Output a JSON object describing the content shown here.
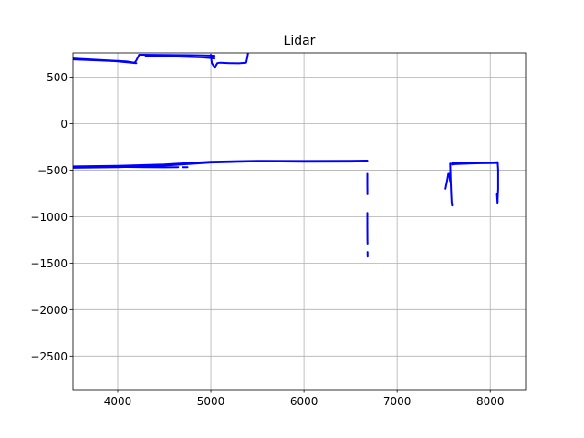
{
  "chart_data": {
    "type": "scatter",
    "title": "Lidar",
    "xlabel": "",
    "ylabel": "",
    "xlim": [
      3520,
      8380
    ],
    "ylim": [
      -2860,
      760
    ],
    "grid": true,
    "xticks": [
      4000,
      5000,
      6000,
      7000,
      8000
    ],
    "xtick_labels": [
      "4000",
      "5000",
      "6000",
      "7000",
      "8000"
    ],
    "yticks": [
      500,
      0,
      -500,
      -1000,
      -1500,
      -2000,
      -2500
    ],
    "ytick_labels": [
      "500",
      "0",
      "−500",
      "−1000",
      "−1500",
      "−2000",
      "−2500"
    ],
    "series_color": "#0000ff",
    "grid_color": "#b0b0b0",
    "series": [
      {
        "x": [
          3520,
          3700,
          3900,
          4100,
          4180,
          4200,
          4230
        ],
        "y": [
          700,
          690,
          680,
          668,
          655,
          680,
          740
        ]
      },
      {
        "x": [
          3520,
          3800,
          4000,
          4200
        ],
        "y": [
          690,
          680,
          670,
          650
        ]
      },
      {
        "x": [
          4240,
          4500,
          4800,
          5000,
          5040
        ],
        "y": [
          740,
          738,
          735,
          732,
          730
        ]
      },
      {
        "x": [
          4300,
          4600,
          4900,
          5000,
          5040
        ],
        "y": [
          730,
          722,
          712,
          705,
          700
        ]
      },
      {
        "x": [
          5000,
          5010,
          5030
        ],
        "y": [
          740,
          650,
          620
        ]
      },
      {
        "x": [
          5040,
          5070,
          5100,
          5200,
          5300,
          5380,
          5390,
          5400
        ],
        "y": [
          600,
          650,
          655,
          650,
          648,
          655,
          700,
          760
        ]
      },
      {
        "x": [
          3520,
          4000,
          4500,
          5000,
          5500,
          6000,
          6500,
          6680
        ],
        "y": [
          -460,
          -455,
          -440,
          -410,
          -400,
          -402,
          -400,
          -398
        ]
      },
      {
        "x": [
          3520,
          4000,
          4500,
          5000,
          5500,
          6000,
          6500,
          6680
        ],
        "y": [
          -475,
          -468,
          -452,
          -418,
          -405,
          -410,
          -408,
          -405
        ]
      },
      {
        "x": [
          4000,
          4300,
          4500,
          4650
        ],
        "y": [
          -465,
          -468,
          -470,
          -468
        ]
      },
      {
        "x": [
          4700,
          4750
        ],
        "y": [
          -468,
          -468
        ]
      },
      {
        "x": [
          6680,
          6680,
          6681
        ],
        "y": [
          -540,
          -650,
          -760
        ]
      },
      {
        "x": [
          6680,
          6680,
          6681,
          6682
        ],
        "y": [
          -960,
          -1100,
          -1250,
          -1290
        ]
      },
      {
        "x": [
          6682,
          6683
        ],
        "y": [
          -1380,
          -1430
        ]
      },
      {
        "x": [
          7520,
          7540,
          7550,
          7560,
          7570
        ],
        "y": [
          -700,
          -600,
          -540,
          -540,
          -620
        ]
      },
      {
        "x": [
          7570,
          7575,
          7580,
          7585,
          7590
        ],
        "y": [
          -430,
          -600,
          -750,
          -850,
          -880
        ]
      },
      {
        "x": [
          7585,
          7600,
          7620,
          7700,
          7800,
          7900,
          8000,
          8080
        ],
        "y": [
          -430,
          -420,
          -425,
          -422,
          -420,
          -418,
          -418,
          -415
        ]
      },
      {
        "x": [
          7590,
          7620,
          7700,
          7800,
          7900,
          8000,
          8080
        ],
        "y": [
          -440,
          -436,
          -432,
          -428,
          -426,
          -425,
          -423
        ]
      },
      {
        "x": [
          8080,
          8085,
          8085,
          8080,
          8078
        ],
        "y": [
          -415,
          -500,
          -700,
          -800,
          -860
        ]
      },
      {
        "x": [
          8072,
          8078
        ],
        "y": [
          -760,
          -840
        ]
      }
    ]
  }
}
